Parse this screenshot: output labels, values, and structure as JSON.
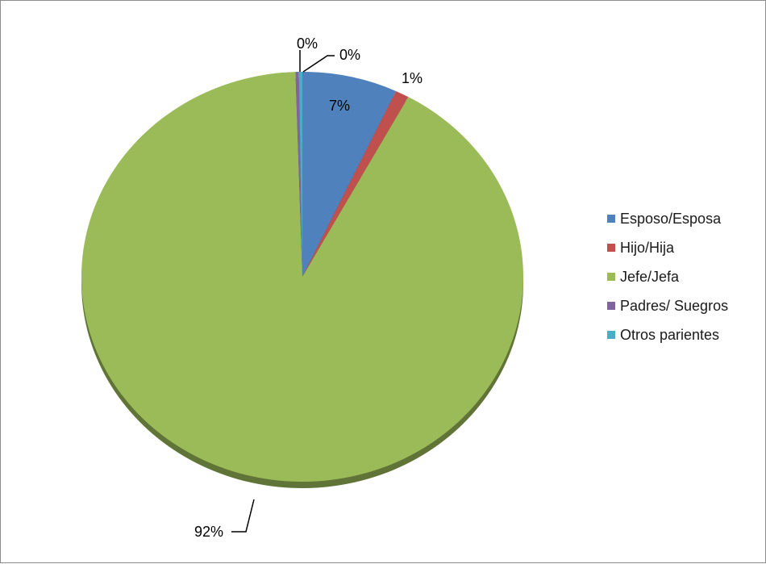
{
  "chart_data": {
    "type": "pie",
    "categories": [
      "Esposo/Esposa",
      "Hijo/Hija",
      "Jefe/Jefa",
      "Padres/ Suegros",
      "Otros parientes"
    ],
    "values": [
      7,
      1,
      92,
      0,
      0
    ],
    "data_labels": [
      "7%",
      "1%",
      "92%",
      "0%",
      "0%"
    ],
    "colors": [
      "#4f81bd",
      "#c0504d",
      "#9bbb59",
      "#8064a2",
      "#4bacc6"
    ],
    "legend_position": "right",
    "title": ""
  },
  "legend": {
    "items": [
      {
        "label": "Esposo/Esposa",
        "color": "#4f81bd"
      },
      {
        "label": "Hijo/Hija",
        "color": "#c0504d"
      },
      {
        "label": "Jefe/Jefa",
        "color": "#9bbb59"
      },
      {
        "label": "Padres/ Suegros",
        "color": "#8064a2"
      },
      {
        "label": "Otros parientes",
        "color": "#4bacc6"
      }
    ]
  }
}
